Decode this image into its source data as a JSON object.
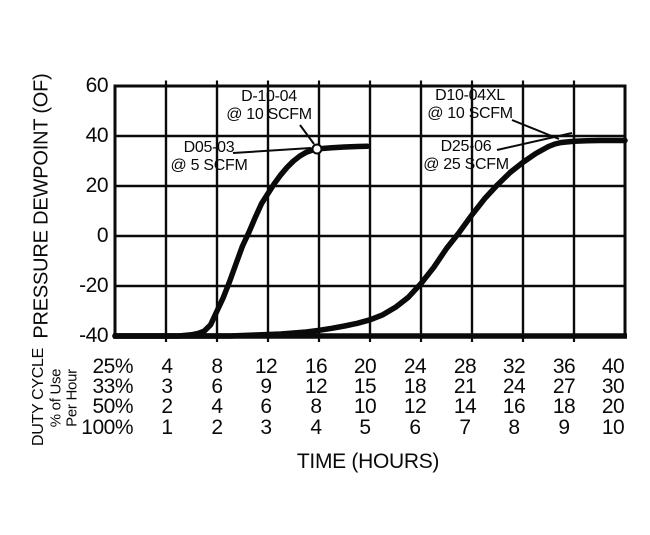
{
  "chart_data": {
    "type": "line",
    "title": "",
    "xlabel": "TIME (HOURS)",
    "ylabel": "PRESSURE DEWPOINT (OF)",
    "ylim": [
      -40,
      60
    ],
    "y_ticks": [
      "60",
      "40",
      "20",
      "0",
      "-20",
      "-40"
    ],
    "xlim_hours_at_25pct_duty": [
      0,
      40
    ],
    "x_gridline_interval_hours_at_25pct_duty": 4,
    "grid": true,
    "duty_cycle_axis_label_lines": [
      "DUTY CYCLE",
      "% of Use",
      "Per Hour"
    ],
    "duty_cycle_rows": [
      {
        "duty_cycle": "25%",
        "hour_labels": [
          "4",
          "8",
          "12",
          "16",
          "20",
          "24",
          "28",
          "32",
          "36",
          "40"
        ]
      },
      {
        "duty_cycle": "33%",
        "hour_labels": [
          "3",
          "6",
          "9",
          "12",
          "15",
          "18",
          "21",
          "24",
          "27",
          "30"
        ]
      },
      {
        "duty_cycle": "50%",
        "hour_labels": [
          "2",
          "4",
          "6",
          "8",
          "10",
          "12",
          "14",
          "16",
          "18",
          "20"
        ]
      },
      {
        "duty_cycle": "100%",
        "hour_labels": [
          "1",
          "2",
          "3",
          "4",
          "5",
          "6",
          "7",
          "8",
          "9",
          "10"
        ]
      }
    ],
    "series": [
      {
        "name": "D05-03 @ 5 SCFM / D-10-04 @ 10 SCFM",
        "points": [
          [
            0,
            -40
          ],
          [
            5,
            -40
          ],
          [
            6,
            -39.5
          ],
          [
            6.5,
            -39
          ],
          [
            7,
            -38
          ],
          [
            7.5,
            -35.5
          ],
          [
            8,
            -30
          ],
          [
            8.5,
            -24.5
          ],
          [
            9,
            -18
          ],
          [
            9.5,
            -11
          ],
          [
            10,
            -4
          ],
          [
            10.5,
            1.5
          ],
          [
            11,
            7.5
          ],
          [
            11.5,
            13
          ],
          [
            12,
            17
          ],
          [
            12.5,
            21
          ],
          [
            13,
            24.5
          ],
          [
            13.5,
            27.5
          ],
          [
            14,
            30
          ],
          [
            14.5,
            32
          ],
          [
            15,
            33.5
          ],
          [
            15.5,
            34.4
          ],
          [
            16,
            34.9
          ],
          [
            17,
            35.3
          ],
          [
            18,
            35.6
          ],
          [
            19,
            35.8
          ],
          [
            19.8,
            35.9
          ]
        ]
      },
      {
        "name": "D10-04XL @ 10 SCFM / D25-06 @ 25 SCFM",
        "points": [
          [
            0,
            -40
          ],
          [
            9,
            -40
          ],
          [
            11,
            -39.6
          ],
          [
            13,
            -39.2
          ],
          [
            15,
            -38.4
          ],
          [
            16,
            -37.7
          ],
          [
            17,
            -36.9
          ],
          [
            18,
            -36
          ],
          [
            19,
            -34.9
          ],
          [
            20,
            -33.5
          ],
          [
            21,
            -31.5
          ],
          [
            22,
            -28.5
          ],
          [
            23,
            -24.5
          ],
          [
            24,
            -19
          ],
          [
            25,
            -12.5
          ],
          [
            26,
            -5
          ],
          [
            27,
            1.5
          ],
          [
            28,
            8.5
          ],
          [
            29,
            15
          ],
          [
            30,
            20.5
          ],
          [
            31,
            25.5
          ],
          [
            32,
            29.5
          ],
          [
            33,
            33
          ],
          [
            34,
            35.8
          ],
          [
            34.5,
            36.8
          ],
          [
            35,
            37.4
          ],
          [
            36,
            37.9
          ],
          [
            37,
            38.1
          ],
          [
            38,
            38.2
          ],
          [
            39,
            38.2
          ],
          [
            40,
            38.2
          ]
        ]
      }
    ],
    "annotations": [
      {
        "line1": "D-10-04",
        "line2": "@ 10 SCFM",
        "points_to_series": 0
      },
      {
        "line1": "D05-03",
        "line2": "@ 5 SCFM",
        "points_to_series": 0
      },
      {
        "line1": "D10-04XL",
        "line2": "@ 10 SCFM",
        "points_to_series": 1
      },
      {
        "line1": "D25-06",
        "line2": "@ 25 SCFM",
        "points_to_series": 1
      }
    ],
    "line_color": "#0a0a0a",
    "background_color": "#ffffff"
  }
}
